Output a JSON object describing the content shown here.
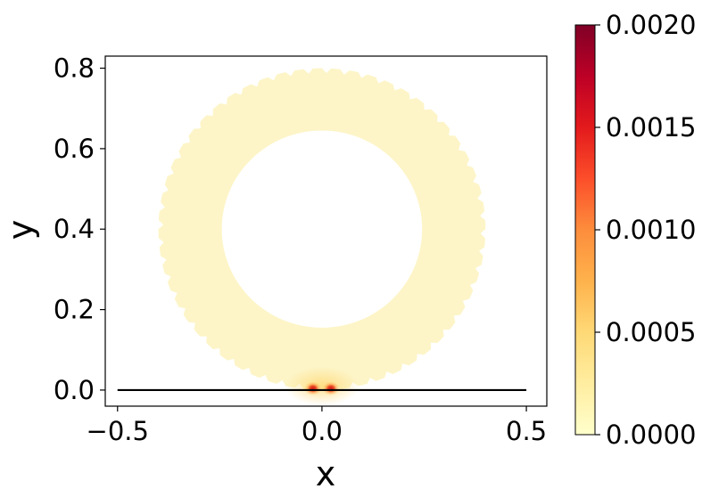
{
  "chart_data": {
    "type": "heatmap",
    "title": "",
    "xlabel": "x",
    "ylabel": "y",
    "xlim": [
      -0.53,
      0.55
    ],
    "ylim": [
      -0.04,
      0.83
    ],
    "xticks": [
      {
        "value": -0.5,
        "label": "−0.5"
      },
      {
        "value": 0.0,
        "label": "0.0"
      },
      {
        "value": 0.5,
        "label": "0.5"
      }
    ],
    "yticks": [
      {
        "value": 0.0,
        "label": "0.0"
      },
      {
        "value": 0.2,
        "label": "0.2"
      },
      {
        "value": 0.4,
        "label": "0.4"
      },
      {
        "value": 0.6,
        "label": "0.6"
      },
      {
        "value": 0.8,
        "label": "0.8"
      }
    ],
    "field_geometry": {
      "shape": "annulus with notched outer edge",
      "center": [
        0.0,
        0.4
      ],
      "outer_radius": 0.4,
      "inner_radius": 0.245,
      "notch_count": 56
    },
    "ground_line": {
      "x": [
        -0.5,
        0.5
      ],
      "y": [
        0.0,
        0.0
      ],
      "color": "#000000"
    },
    "hotspots": [
      {
        "x": -0.022,
        "y": 0.004,
        "value": 0.0016
      },
      {
        "x": 0.022,
        "y": 0.004,
        "value": 0.0016
      }
    ],
    "background_value": 0.0001,
    "colorbar": {
      "min": 0.0,
      "max": 0.002,
      "colormap": "YlOrRd",
      "ticks": [
        {
          "value": 0.0,
          "label": "0.0000"
        },
        {
          "value": 0.0005,
          "label": "0.0005"
        },
        {
          "value": 0.001,
          "label": "0.0010"
        },
        {
          "value": 0.0015,
          "label": "0.0015"
        },
        {
          "value": 0.002,
          "label": "0.0020"
        }
      ]
    }
  },
  "colors": {
    "cmap_stops": [
      "#ffffcc",
      "#ffeda0",
      "#fed976",
      "#feb24c",
      "#fd8d3c",
      "#fc4e2a",
      "#e31a1c",
      "#bd0026",
      "#800026"
    ],
    "field_base": "#fdf5c8",
    "axes": "#000000"
  }
}
